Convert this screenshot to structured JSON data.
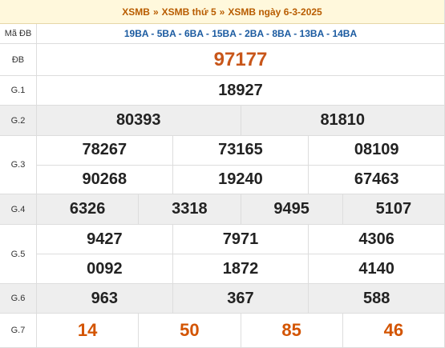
{
  "header": {
    "crumbs": [
      "XSMB",
      "XSMB thứ 5",
      "XSMB ngày 6-3-2025"
    ],
    "separator": "»"
  },
  "code_row": {
    "label": "Mã ĐB",
    "codes": "19BA - 5BA - 6BA - 15BA - 2BA - 8BA - 13BA - 14BA"
  },
  "rows": [
    {
      "label": "ĐB",
      "lines": [
        [
          "97177"
        ]
      ],
      "color": "#c8561a"
    },
    {
      "label": "G.1",
      "lines": [
        [
          "18927"
        ]
      ]
    },
    {
      "label": "G.2",
      "lines": [
        [
          "80393",
          "81810"
        ]
      ]
    },
    {
      "label": "G.3",
      "lines": [
        [
          "78267",
          "73165",
          "08109"
        ],
        [
          "90268",
          "19240",
          "67463"
        ]
      ]
    },
    {
      "label": "G.4",
      "lines": [
        [
          "6326",
          "3318",
          "9495",
          "5107"
        ]
      ]
    },
    {
      "label": "G.5",
      "lines": [
        [
          "9427",
          "7971",
          "4306"
        ],
        [
          "0092",
          "1872",
          "4140"
        ]
      ]
    },
    {
      "label": "G.6",
      "lines": [
        [
          "963",
          "367",
          "588"
        ]
      ]
    },
    {
      "label": "G.7",
      "lines": [
        [
          "14",
          "50",
          "85",
          "46"
        ]
      ],
      "color": "#d35400"
    }
  ]
}
